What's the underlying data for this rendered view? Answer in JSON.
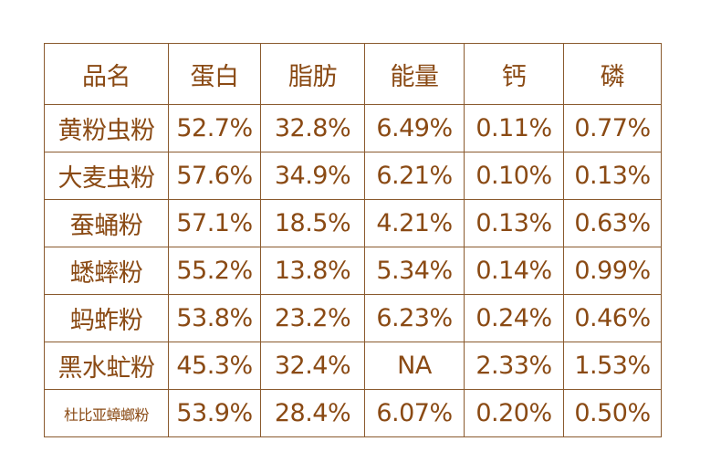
{
  "table": {
    "headers": [
      "品名",
      "蛋白",
      "脂肪",
      "能量",
      "钙",
      "磷"
    ],
    "rows": [
      {
        "name": "黄粉虫粉",
        "values": [
          "52.7%",
          "32.8%",
          "6.49%",
          "0.11%",
          "0.77%"
        ]
      },
      {
        "name": "大麦虫粉",
        "values": [
          "57.6%",
          "34.9%",
          "6.21%",
          "0.10%",
          "0.13%"
        ]
      },
      {
        "name": "蚕蛹粉",
        "values": [
          "57.1%",
          "18.5%",
          "4.21%",
          "0.13%",
          "0.63%"
        ]
      },
      {
        "name": "蟋蟀粉",
        "values": [
          "55.2%",
          "13.8%",
          "5.34%",
          "0.14%",
          "0.99%"
        ]
      },
      {
        "name": "蚂蚱粉",
        "values": [
          "53.8%",
          "23.2%",
          "6.23%",
          "0.24%",
          "0.46%"
        ]
      },
      {
        "name": "黑水虻粉",
        "values": [
          "45.3%",
          "32.4%",
          "NA",
          "2.33%",
          "1.53%"
        ]
      },
      {
        "name": "杜比亚蟑螂粉",
        "values": [
          "53.9%",
          "28.4%",
          "6.07%",
          "0.20%",
          "0.50%"
        ]
      }
    ]
  },
  "colors": {
    "text": "#8a4a14",
    "border": "#8a5a2e",
    "background": "#ffffff"
  }
}
